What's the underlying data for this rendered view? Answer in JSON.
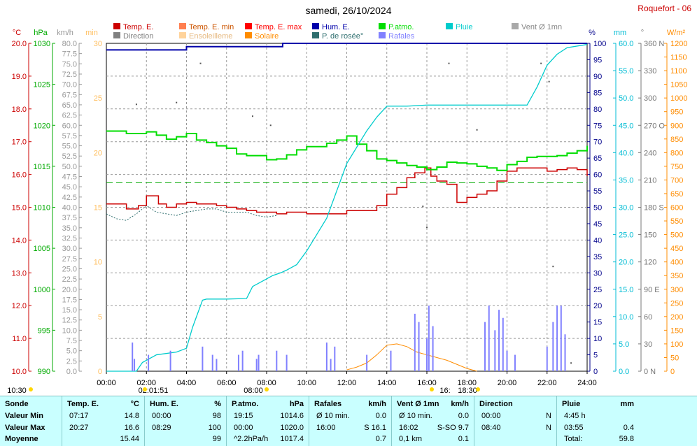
{
  "header": {
    "title": "samedi, 26/10/2024",
    "station": "Roquefort - 06"
  },
  "legend": [
    {
      "label": "Temp. E.",
      "color": "#cc0000"
    },
    {
      "label": "Temp. E. min",
      "color": "#ff7f50"
    },
    {
      "label": "Temp. E. max",
      "color": "#ff0000"
    },
    {
      "label": "Hum. E.",
      "color": "#0000aa"
    },
    {
      "label": "P.atmo.",
      "color": "#00dd00"
    },
    {
      "label": "Pluie",
      "color": "#00cccc"
    },
    {
      "label": "Vent Ø 1mn",
      "color": "#a9a9a9"
    },
    {
      "label": "Direction",
      "color": "#808080"
    },
    {
      "label": "Ensoleilleme",
      "color": "#ffd39b"
    },
    {
      "label": "Solaire",
      "color": "#ff8c00"
    },
    {
      "label": "P. de rosée°",
      "color": "#2f6f6f"
    },
    {
      "label": "Rafales",
      "color": "#8080ff"
    }
  ],
  "axes": {
    "units": [
      "°C",
      "hPa",
      "km/h",
      "min",
      "%",
      "mm",
      "°",
      "W/m²"
    ],
    "temp_ticks": [
      "10.0",
      "11.0",
      "12.0",
      "13.0",
      "14.0",
      "15.0",
      "16.0",
      "17.0",
      "18.0",
      "19.0",
      "20.0"
    ],
    "pressure_ticks": [
      "990",
      "995",
      "1000",
      "1005",
      "1010",
      "1015",
      "1020",
      "1025",
      "1030"
    ],
    "wind_ticks": [
      "0.0",
      "2.5",
      "5.0",
      "7.5",
      "10.0",
      "12.5",
      "15.0",
      "17.5",
      "20.0",
      "22.5",
      "25.0",
      "27.5",
      "30.0",
      "32.5",
      "35.0",
      "37.5",
      "40.0",
      "42.5",
      "45.0",
      "47.5",
      "50.0",
      "52.5",
      "55.0",
      "57.5",
      "60.0",
      "62.5",
      "65.0",
      "67.5",
      "70.0",
      "72.5",
      "75.0",
      "77.5",
      "80.0"
    ],
    "min_ticks": [
      "0",
      "5",
      "10",
      "15",
      "20",
      "25",
      "30"
    ],
    "hum_ticks": [
      "0",
      "5",
      "10",
      "15",
      "20",
      "25",
      "30",
      "35",
      "40",
      "45",
      "50",
      "55",
      "60",
      "65",
      "70",
      "75",
      "80",
      "85",
      "90",
      "95",
      "100"
    ],
    "rain_ticks": [
      "0.0",
      "5.0",
      "10.0",
      "15.0",
      "20.0",
      "25.0",
      "30.0",
      "35.0",
      "40.0",
      "45.0",
      "50.0",
      "55.0",
      "60.0"
    ],
    "dir_ticks": [
      "0 N",
      "30",
      "60",
      "90 E",
      "120",
      "150",
      "180 S",
      "210",
      "240",
      "270 O",
      "300",
      "330",
      "360 N"
    ],
    "solar_ticks": [
      "0",
      "50",
      "100",
      "150",
      "200",
      "250",
      "300",
      "350",
      "400",
      "450",
      "500",
      "550",
      "600",
      "650",
      "700",
      "750",
      "800",
      "850",
      "900",
      "950",
      "1000",
      "1050",
      "1100",
      "1150",
      "1200"
    ],
    "time_ticks": [
      "00:00",
      "02:00",
      "04:00",
      "06:00",
      "08:00",
      "10:00",
      "12:00",
      "14:00",
      "16:00",
      "18:00",
      "20:00",
      "22:00",
      "24:00"
    ],
    "time_markers": [
      "10:30",
      "02:01:51",
      "08:00",
      "16:",
      "18:30"
    ]
  },
  "chart_data": {
    "type": "line",
    "title": "samedi, 26/10/2024",
    "x_unit": "hours",
    "xlim": [
      0,
      24
    ],
    "series": [
      {
        "name": "Temp. E.",
        "axis": "°C",
        "ylim": [
          10,
          20
        ],
        "x": [
          0,
          0.6,
          1,
          1.6,
          2,
          2.6,
          3,
          3.5,
          4,
          4.5,
          5,
          5.5,
          6,
          6.5,
          7,
          7.5,
          8,
          8.5,
          9,
          10,
          11,
          12,
          12.5,
          13,
          13.5,
          14,
          14.5,
          15,
          15.4,
          15.9,
          16.2,
          16.5,
          17,
          17.5,
          18,
          18.5,
          19,
          19.5,
          20,
          20.5,
          21,
          21.5,
          22,
          22.5,
          23,
          23.5,
          24
        ],
        "y": [
          15.1,
          15.1,
          14.95,
          15.05,
          15.35,
          15.1,
          15.0,
          15.1,
          15.15,
          15.1,
          15.1,
          15.05,
          15.0,
          14.95,
          14.9,
          14.85,
          14.85,
          14.8,
          14.85,
          14.8,
          14.8,
          14.9,
          14.9,
          14.9,
          15.05,
          15.4,
          15.6,
          15.9,
          16.05,
          16.2,
          15.95,
          15.8,
          15.7,
          15.15,
          15.3,
          15.4,
          15.5,
          15.8,
          16.1,
          16.2,
          16.2,
          16.2,
          16.1,
          16.15,
          16.2,
          16.15,
          15.95
        ]
      },
      {
        "name": "P. de rosée°",
        "axis": "°C",
        "ylim": [
          10,
          20
        ],
        "x": [
          0,
          0.5,
          1,
          1.5,
          2,
          2.5,
          3,
          3.5,
          4,
          4.5,
          5,
          5.5,
          6,
          6.5,
          7,
          7.5,
          8,
          8.5
        ],
        "y": [
          14.8,
          14.65,
          14.6,
          14.8,
          15.05,
          14.85,
          14.8,
          14.75,
          14.85,
          14.9,
          14.95,
          14.95,
          14.85,
          14.85,
          14.85,
          14.75,
          14.7,
          14.75
        ]
      },
      {
        "name": "P.atmo.",
        "axis": "hPa",
        "ylim": [
          990,
          1030
        ],
        "x": [
          0,
          1,
          2,
          2.5,
          3,
          3.5,
          4,
          4.5,
          5,
          5.5,
          6,
          6.5,
          7,
          7.5,
          8,
          8.5,
          9,
          9.5,
          10,
          10.5,
          11,
          11.5,
          12,
          12.5,
          13,
          13.5,
          14,
          14.5,
          15,
          15.5,
          16,
          16.5,
          17,
          17.5,
          18,
          18.5,
          19,
          19.5,
          20,
          20.5,
          21,
          21.5,
          22,
          22.5,
          23,
          23.5,
          24
        ],
        "y": [
          1019.3,
          1019.0,
          1019.2,
          1018.8,
          1018.3,
          1018.6,
          1019.0,
          1018.2,
          1017.9,
          1017.5,
          1017.2,
          1016.5,
          1016.3,
          1016.3,
          1015.8,
          1015.9,
          1016.4,
          1017.0,
          1017.4,
          1017.4,
          1017.8,
          1018.2,
          1018.7,
          1017.7,
          1016.9,
          1015.9,
          1015.7,
          1015.4,
          1015.1,
          1014.9,
          1014.6,
          1014.9,
          1015.5,
          1015.4,
          1015.3,
          1015.0,
          1014.8,
          1014.5,
          1015.2,
          1015.6,
          1016.1,
          1016.2,
          1016.2,
          1016.3,
          1016.6,
          1016.9,
          1017.5
        ]
      },
      {
        "name": "Hum. E.",
        "axis": "%",
        "ylim": [
          0,
          100
        ],
        "x": [
          0,
          3.8,
          4,
          8.6,
          8.8,
          10.5,
          11,
          24
        ],
        "y": [
          98,
          98,
          99,
          99,
          100,
          100,
          100,
          100
        ]
      },
      {
        "name": "Pluie",
        "axis": "mm",
        "ylim": [
          0,
          60
        ],
        "x": [
          0,
          1.5,
          1.8,
          2.5,
          3.5,
          4,
          4.3,
          4.8,
          5,
          5.5,
          6,
          7,
          7.3,
          7.8,
          8.3,
          8.7,
          9,
          9.5,
          10,
          10.5,
          11,
          11.5,
          12,
          12.5,
          13,
          13.5,
          14,
          15,
          16,
          17,
          18,
          19,
          19.5,
          20,
          20.5,
          21,
          21.5,
          22,
          22.5,
          23,
          24
        ],
        "y": [
          0,
          0,
          1.6,
          3.0,
          3.5,
          4.2,
          8,
          13,
          13.2,
          13.2,
          13.2,
          13.3,
          15.5,
          16.5,
          17.5,
          18,
          18.5,
          19.5,
          22,
          25,
          28,
          33,
          38,
          41,
          44,
          46.5,
          48.5,
          48.5,
          48.7,
          48.7,
          48.7,
          48.7,
          48.7,
          48.7,
          48.7,
          48.7,
          52,
          56,
          58,
          59.2,
          59.8
        ]
      },
      {
        "name": "Solaire",
        "axis": "W/m²",
        "ylim": [
          0,
          1200
        ],
        "x": [
          12,
          12.5,
          13,
          13.5,
          14,
          14.5,
          15,
          15.5,
          16,
          16.5,
          17,
          17.5,
          18,
          18.5
        ],
        "y": [
          5,
          15,
          30,
          60,
          95,
          100,
          90,
          70,
          60,
          50,
          40,
          25,
          10,
          0
        ]
      },
      {
        "name": "Rafales",
        "axis": "km/h",
        "ylim": [
          0,
          80
        ],
        "x": [
          1.3,
          1.4,
          2.1,
          3.2,
          4.8,
          5.3,
          5.5,
          6.6,
          6.8,
          7.5,
          7.6,
          8.5,
          9.0,
          11.0,
          11.2,
          11.4,
          13.0,
          14.2,
          15.4,
          15.6,
          16.0,
          16.1,
          16.3,
          18.9,
          19.1,
          19.4,
          19.6,
          19.8,
          20.0,
          20.4,
          22.0,
          22.3,
          22.5,
          22.7,
          22.9
        ],
        "y": [
          7,
          3,
          4,
          5,
          6,
          4,
          3,
          4,
          5,
          3,
          4,
          5,
          4,
          7,
          3,
          6,
          4,
          5,
          14,
          12,
          8,
          16,
          11,
          12,
          16,
          10,
          15,
          13,
          5,
          4,
          6,
          12,
          16,
          16,
          9
        ]
      },
      {
        "name": "Direction",
        "axis": "°",
        "ylim": [
          0,
          360
        ],
        "x": [
          1.5,
          3.5,
          4.7,
          7.3,
          8.2,
          15.8,
          16.0,
          17.1,
          18.5,
          21.7,
          22.1,
          22.3,
          23.2
        ],
        "y": [
          293,
          295,
          338,
          280,
          270,
          181,
          158,
          338,
          265,
          338,
          318,
          115,
          9
        ]
      }
    ]
  },
  "summary": {
    "columns": [
      {
        "title": "Sonde",
        "unit": "",
        "rows": [
          "Valeur Min",
          "Valeur Max",
          "Moyenne"
        ]
      },
      {
        "title": "Temp. E.",
        "unit": "°C",
        "rows": [
          [
            "07:17",
            "14.8"
          ],
          [
            "20:27",
            "16.6"
          ],
          [
            "",
            "15.44"
          ]
        ]
      },
      {
        "title": "Hum. E.",
        "unit": "%",
        "rows": [
          [
            "00:00",
            "98"
          ],
          [
            "08:29",
            "100"
          ],
          [
            "",
            "99"
          ]
        ]
      },
      {
        "title": "P.atmo.",
        "unit": "hPa",
        "rows": [
          [
            "19:15",
            "1014.6"
          ],
          [
            "00:00",
            "1020.0"
          ],
          [
            "^2.2hPa/h",
            "1017.4"
          ]
        ]
      },
      {
        "title": "Rafales",
        "unit": "km/h",
        "rows": [
          [
            "Ø 10 min.",
            "0.0"
          ],
          [
            "16:00",
            "S 16.1"
          ],
          [
            "",
            "0.7"
          ]
        ]
      },
      {
        "title": "Vent Ø 1mn",
        "unit": "km/h",
        "rows": [
          [
            "Ø 10 min.",
            "0.0"
          ],
          [
            "16:02",
            "S-SO 9.7"
          ],
          [
            "0,1 km",
            "0.1"
          ]
        ]
      },
      {
        "title": "Direction",
        "unit": "",
        "rows": [
          [
            "00:00",
            "N"
          ],
          [
            "08:40",
            "N"
          ],
          [
            "",
            ""
          ]
        ]
      },
      {
        "title": "Pluie",
        "unit": "mm",
        "rows": [
          [
            "4:45 h",
            ""
          ],
          [
            "03:55",
            "0.4"
          ],
          [
            "Total:",
            "59.8"
          ]
        ]
      }
    ]
  }
}
